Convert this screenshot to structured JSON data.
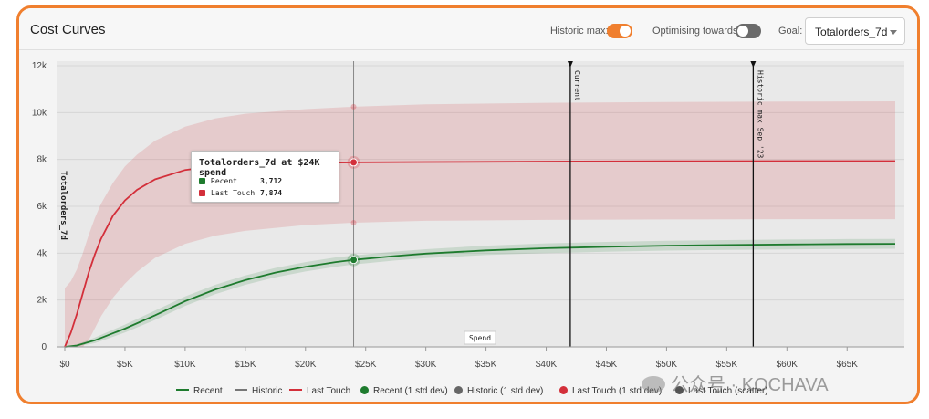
{
  "header": {
    "title": "Cost Curves",
    "historic_max_label": "Historic max:",
    "optimising_label": "Optimising towards:",
    "goal_label": "Goal:",
    "goal_value": "Totalorders_7d"
  },
  "toggles": {
    "historic_max_on": true,
    "optimising_on": false,
    "on_color": "#f07f2e",
    "off_color": "#6b6b6b"
  },
  "tooltip": {
    "title": "Totalorders_7d at $24K spend",
    "rows": [
      {
        "name": "Recent",
        "value": "3,712",
        "color": "#1e7b2e"
      },
      {
        "name": "Last Touch",
        "value": "7,874",
        "color": "#d32f3a"
      }
    ]
  },
  "chart_data": {
    "type": "line",
    "ylabel": "Totalorders_7d",
    "xlabel": "Spend",
    "xlim": [
      0,
      69000
    ],
    "ylim": [
      0,
      12000
    ],
    "x_ticks": [
      "$0",
      "$5K",
      "$10K",
      "$15K",
      "$20K",
      "$25K",
      "$30K",
      "$35K",
      "$40K",
      "$45K",
      "$50K",
      "$55K",
      "$60K",
      "$65K"
    ],
    "x_tick_values": [
      0,
      5000,
      10000,
      15000,
      20000,
      25000,
      30000,
      35000,
      40000,
      45000,
      50000,
      55000,
      60000,
      65000
    ],
    "y_ticks": [
      "0",
      "2k",
      "4k",
      "6k",
      "8k",
      "10k",
      "12k"
    ],
    "y_tick_values": [
      0,
      2000,
      4000,
      6000,
      8000,
      10000,
      12000
    ],
    "grid": true,
    "series": [
      {
        "name": "Recent",
        "color": "#1e7b2e",
        "x": [
          0,
          1000,
          2500,
          5000,
          7500,
          10000,
          12500,
          15000,
          17500,
          20000,
          22500,
          24000,
          27500,
          30000,
          35000,
          40000,
          45000,
          50000,
          55000,
          60000,
          65000,
          69000
        ],
        "y": [
          0,
          60,
          280,
          780,
          1350,
          1950,
          2450,
          2850,
          3170,
          3420,
          3620,
          3712,
          3880,
          3980,
          4120,
          4210,
          4270,
          4320,
          4350,
          4370,
          4390,
          4400
        ],
        "band_upper": [
          0,
          110,
          400,
          950,
          1550,
          2150,
          2650,
          3050,
          3370,
          3620,
          3820,
          3900,
          4070,
          4170,
          4320,
          4420,
          4480,
          4530,
          4560,
          4580,
          4600,
          4610
        ],
        "band_lower": [
          0,
          20,
          160,
          610,
          1150,
          1750,
          2250,
          2650,
          2970,
          3220,
          3420,
          3520,
          3690,
          3790,
          3920,
          4000,
          4060,
          4110,
          4140,
          4160,
          4180,
          4190
        ]
      },
      {
        "name": "Last Touch",
        "color": "#d32f3a",
        "x": [
          0,
          500,
          1000,
          1500,
          2000,
          2500,
          3000,
          4000,
          5000,
          6000,
          7500,
          10000,
          12500,
          15000,
          20000,
          24000,
          30000,
          40000,
          50000,
          60000,
          69000
        ],
        "y": [
          0,
          600,
          1400,
          2300,
          3200,
          3950,
          4600,
          5600,
          6250,
          6700,
          7150,
          7550,
          7720,
          7800,
          7850,
          7874,
          7890,
          7910,
          7920,
          7930,
          7930
        ],
        "band_upper": [
          2500,
          2800,
          3300,
          4000,
          4800,
          5500,
          6100,
          7000,
          7700,
          8200,
          8800,
          9400,
          9750,
          9950,
          10150,
          10250,
          10350,
          10420,
          10450,
          10470,
          10480
        ],
        "band_lower": [
          0,
          0,
          0,
          0,
          300,
          800,
          1300,
          2100,
          2700,
          3200,
          3800,
          4400,
          4750,
          4950,
          5200,
          5300,
          5380,
          5420,
          5440,
          5450,
          5450
        ]
      }
    ],
    "hover": {
      "x": 24000,
      "values": {
        "Recent": 3712,
        "Last Touch": 7874
      }
    },
    "markers": [
      {
        "label": "Current",
        "x": 42000
      },
      {
        "label": "Historic max Sep '23",
        "x": 57200
      }
    ],
    "legend": [
      {
        "label": "Recent",
        "kind": "line",
        "color": "#1e7b2e"
      },
      {
        "label": "Historic",
        "kind": "line",
        "color": "#777777"
      },
      {
        "label": "Last Touch",
        "kind": "line",
        "color": "#d32f3a"
      },
      {
        "label": "Recent (1 std dev)",
        "kind": "dot",
        "color": "#1e7b2e"
      },
      {
        "label": "Historic (1 std dev)",
        "kind": "dot",
        "color": "#666666"
      },
      {
        "label": "Last Touch (1 std dev)",
        "kind": "dot",
        "color": "#d32f3a"
      },
      {
        "label": "Last Touch (scatter)",
        "kind": "dot",
        "color": "#555555"
      }
    ]
  },
  "watermark": {
    "text": "公众号 · KOCHAVA"
  }
}
